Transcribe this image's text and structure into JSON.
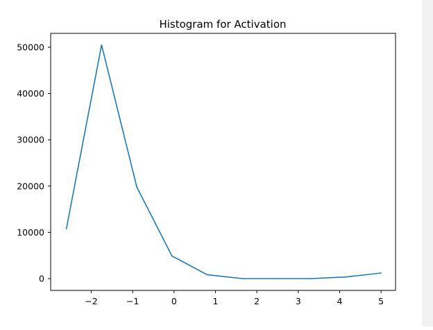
{
  "chart_data": {
    "type": "line",
    "title": "Histogram for Activation",
    "xlabel": "",
    "ylabel": "",
    "x": [
      -2.6,
      -1.75,
      -0.9,
      -0.05,
      0.8,
      1.65,
      2.5,
      3.3,
      4.15,
      5.0
    ],
    "series": [
      {
        "values": [
          10800,
          50500,
          19800,
          4900,
          850,
          0,
          0,
          0,
          350,
          1200
        ],
        "color": "#1f77b4"
      }
    ],
    "xlim": [
      -2.98,
      5.35
    ],
    "ylim": [
      -2550,
      53000
    ],
    "xticks": [
      -2,
      -1,
      0,
      1,
      2,
      3,
      4,
      5
    ],
    "xtick_labels": [
      "−2",
      "−1",
      "0",
      "1",
      "2",
      "3",
      "4",
      "5"
    ],
    "yticks": [
      0,
      10000,
      20000,
      30000,
      40000,
      50000
    ],
    "ytick_labels": [
      "0",
      "10000",
      "20000",
      "30000",
      "40000",
      "50000"
    ],
    "grid": false,
    "legend": "none"
  }
}
